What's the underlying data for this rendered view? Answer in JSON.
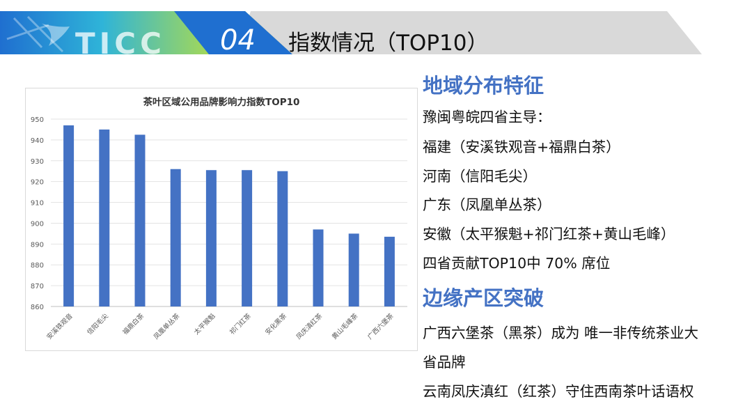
{
  "header": {
    "brand": "TICC",
    "section_number": "04",
    "title": "指数情况（TOP10）"
  },
  "colors": {
    "banner_blue": "#1f6fd0",
    "banner_cyan": "#2fb4d8",
    "banner_green": "#bfe03a",
    "banner_gray": "#d9d9d9",
    "bar_blue": "#4472c4",
    "heading_blue": "#4472c4"
  },
  "chart_data": {
    "type": "bar",
    "title": "茶叶区域公用品牌影响力指数TOP10",
    "categories": [
      "安溪铁观音",
      "信阳毛尖",
      "福鼎白茶",
      "凤凰单丛茶",
      "太平猴魁",
      "祁门红茶",
      "安化黑茶",
      "凤庆滇红茶",
      "黄山毛峰茶",
      "广西六堡茶"
    ],
    "values": [
      947,
      945,
      942.5,
      926,
      925.5,
      925.5,
      925,
      897,
      895,
      893.5
    ],
    "ylim": [
      860,
      950
    ],
    "yticks": [
      860,
      870,
      880,
      890,
      900,
      910,
      920,
      930,
      940,
      950
    ],
    "grid": true,
    "xlabel": "",
    "ylabel": ""
  },
  "right_panel": {
    "section1": {
      "heading": "地域分布特征",
      "lines": [
        "豫闽粤皖四省主导：",
        "福建（安溪铁观音+福鼎白茶）",
        "河南（信阳毛尖）",
        "广东（凤凰单丛茶）",
        "安徽（太平猴魁+祁门红茶+黄山毛峰）",
        "四省贡献TOP10中 70% 席位"
      ]
    },
    "section2": {
      "heading": "边缘产区突破",
      "lines": [
        "广西六堡茶（黑茶）成为 唯一非传统茶业大",
        "省品牌",
        "云南凤庆滇红（红茶）守住西南茶叶话语权"
      ]
    }
  }
}
